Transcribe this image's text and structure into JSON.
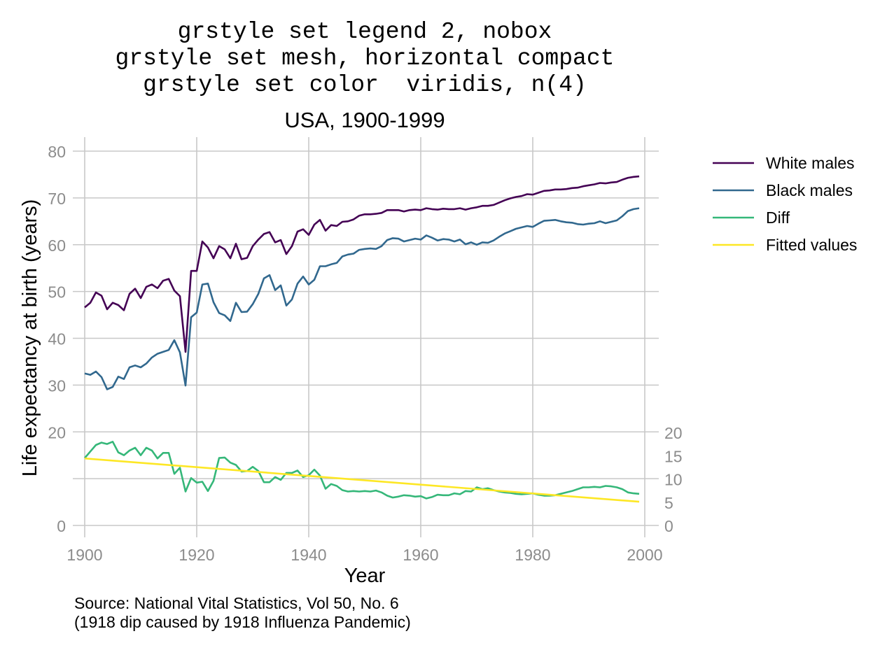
{
  "chart_data": {
    "type": "line",
    "title_lines": [
      "grstyle set legend 2, nobox",
      "grstyle set mesh, horizontal compact",
      "grstyle set color  viridis, n(4)"
    ],
    "subtitle": "USA, 1900-1999",
    "xlabel": "Year",
    "ylabel": "Life expectancy at birth (years)",
    "xlim": [
      1900,
      2000
    ],
    "ylim": [
      0,
      80
    ],
    "y2lim": [
      0,
      20
    ],
    "x_ticks": [
      1900,
      1920,
      1940,
      1960,
      1980,
      2000
    ],
    "y_ticks": [
      0,
      20,
      30,
      40,
      50,
      60,
      70,
      80
    ],
    "y2_ticks": [
      0,
      5,
      10,
      15,
      20
    ],
    "grid": true,
    "legend_position": "right",
    "note_lines": [
      "Source: National Vital Statistics, Vol 50, No. 6",
      "(1918 dip caused by 1918 Influenza Pandemic)"
    ],
    "x": [
      1900,
      1901,
      1902,
      1903,
      1904,
      1905,
      1906,
      1907,
      1908,
      1909,
      1910,
      1911,
      1912,
      1913,
      1914,
      1915,
      1916,
      1917,
      1918,
      1919,
      1920,
      1921,
      1922,
      1923,
      1924,
      1925,
      1926,
      1927,
      1928,
      1929,
      1930,
      1931,
      1932,
      1933,
      1934,
      1935,
      1936,
      1937,
      1938,
      1939,
      1940,
      1941,
      1942,
      1943,
      1944,
      1945,
      1946,
      1947,
      1948,
      1949,
      1950,
      1951,
      1952,
      1953,
      1954,
      1955,
      1956,
      1957,
      1958,
      1959,
      1960,
      1961,
      1962,
      1963,
      1964,
      1965,
      1966,
      1967,
      1968,
      1969,
      1970,
      1971,
      1972,
      1973,
      1974,
      1975,
      1976,
      1977,
      1978,
      1979,
      1980,
      1981,
      1982,
      1983,
      1984,
      1985,
      1986,
      1987,
      1988,
      1989,
      1990,
      1991,
      1992,
      1993,
      1994,
      1995,
      1996,
      1997,
      1998,
      1999
    ],
    "series": [
      {
        "name": "White males",
        "axis": "left",
        "color": "#440154",
        "values": [
          46.6,
          47.6,
          49.8,
          49.1,
          46.2,
          47.6,
          47.1,
          46.0,
          49.5,
          50.6,
          48.6,
          51.0,
          51.5,
          50.7,
          52.3,
          52.7,
          50.2,
          49.0,
          37.1,
          54.4,
          54.4,
          60.7,
          59.4,
          57.1,
          59.7,
          59.0,
          57.1,
          60.2,
          56.9,
          57.2,
          59.7,
          61.1,
          62.3,
          62.7,
          60.5,
          61.0,
          58.0,
          59.7,
          62.8,
          63.3,
          62.1,
          64.3,
          65.3,
          63.0,
          64.2,
          64.0,
          64.9,
          65.0,
          65.4,
          66.2,
          66.5,
          66.5,
          66.6,
          66.8,
          67.4,
          67.4,
          67.4,
          67.1,
          67.4,
          67.5,
          67.4,
          67.8,
          67.6,
          67.5,
          67.7,
          67.6,
          67.6,
          67.8,
          67.5,
          67.8,
          68.0,
          68.3,
          68.3,
          68.5,
          69.0,
          69.5,
          69.9,
          70.2,
          70.4,
          70.8,
          70.7,
          71.1,
          71.5,
          71.6,
          71.8,
          71.8,
          71.9,
          72.1,
          72.2,
          72.5,
          72.7,
          72.9,
          73.2,
          73.1,
          73.3,
          73.4,
          73.9,
          74.3,
          74.5,
          74.6
        ]
      },
      {
        "name": "Black males",
        "axis": "left",
        "color": "#31688e",
        "values": [
          32.5,
          32.2,
          32.9,
          31.7,
          29.1,
          29.6,
          31.8,
          31.3,
          33.8,
          34.2,
          33.8,
          34.6,
          35.9,
          36.7,
          37.1,
          37.5,
          39.6,
          37.0,
          29.9,
          44.5,
          45.5,
          51.5,
          51.7,
          47.7,
          45.4,
          44.9,
          43.7,
          47.6,
          45.6,
          45.7,
          47.3,
          49.5,
          52.8,
          53.5,
          50.3,
          51.3,
          47.0,
          48.3,
          51.7,
          53.2,
          51.5,
          52.5,
          55.4,
          55.4,
          55.8,
          56.1,
          57.5,
          57.9,
          58.1,
          58.9,
          59.1,
          59.2,
          59.1,
          59.7,
          61.0,
          61.4,
          61.3,
          60.7,
          61.0,
          61.3,
          61.1,
          62.0,
          61.5,
          60.9,
          61.2,
          61.1,
          60.7,
          61.1,
          60.1,
          60.5,
          60.0,
          60.5,
          60.4,
          60.9,
          61.7,
          62.4,
          62.9,
          63.4,
          63.7,
          64.0,
          63.8,
          64.5,
          65.1,
          65.2,
          65.3,
          65.0,
          64.8,
          64.7,
          64.4,
          64.3,
          64.5,
          64.6,
          65.0,
          64.6,
          64.9,
          65.2,
          66.1,
          67.2,
          67.6,
          67.8
        ]
      },
      {
        "name": "Diff",
        "axis": "right",
        "color": "#35b779",
        "values": [
          14.5,
          15.9,
          17.3,
          17.8,
          17.5,
          18.0,
          15.7,
          15.1,
          16.1,
          16.7,
          15.1,
          16.7,
          16.1,
          14.4,
          15.6,
          15.6,
          11.1,
          12.4,
          7.3,
          10.2,
          9.2,
          9.4,
          7.4,
          9.6,
          14.5,
          14.6,
          13.5,
          13.0,
          11.6,
          11.7,
          12.6,
          11.7,
          9.3,
          9.3,
          10.4,
          9.8,
          11.3,
          11.3,
          11.8,
          10.4,
          10.8,
          12.0,
          10.7,
          7.9,
          8.9,
          8.5,
          7.6,
          7.3,
          7.4,
          7.3,
          7.4,
          7.3,
          7.5,
          7.1,
          6.4,
          6.0,
          6.2,
          6.5,
          6.4,
          6.2,
          6.3,
          5.8,
          6.1,
          6.6,
          6.5,
          6.5,
          6.9,
          6.7,
          7.4,
          7.3,
          8.2,
          7.8,
          8.0,
          7.6,
          7.3,
          7.1,
          7.0,
          6.8,
          6.7,
          6.8,
          6.9,
          6.6,
          6.4,
          6.4,
          6.5,
          6.8,
          7.1,
          7.4,
          7.8,
          8.2,
          8.2,
          8.3,
          8.2,
          8.5,
          8.4,
          8.2,
          7.8,
          7.1,
          6.9,
          6.8
        ]
      },
      {
        "name": "Fitted values",
        "axis": "right",
        "color": "#fde725",
        "values": [
          14.4,
          5.1
        ],
        "x": [
          1900,
          1999
        ]
      }
    ]
  }
}
